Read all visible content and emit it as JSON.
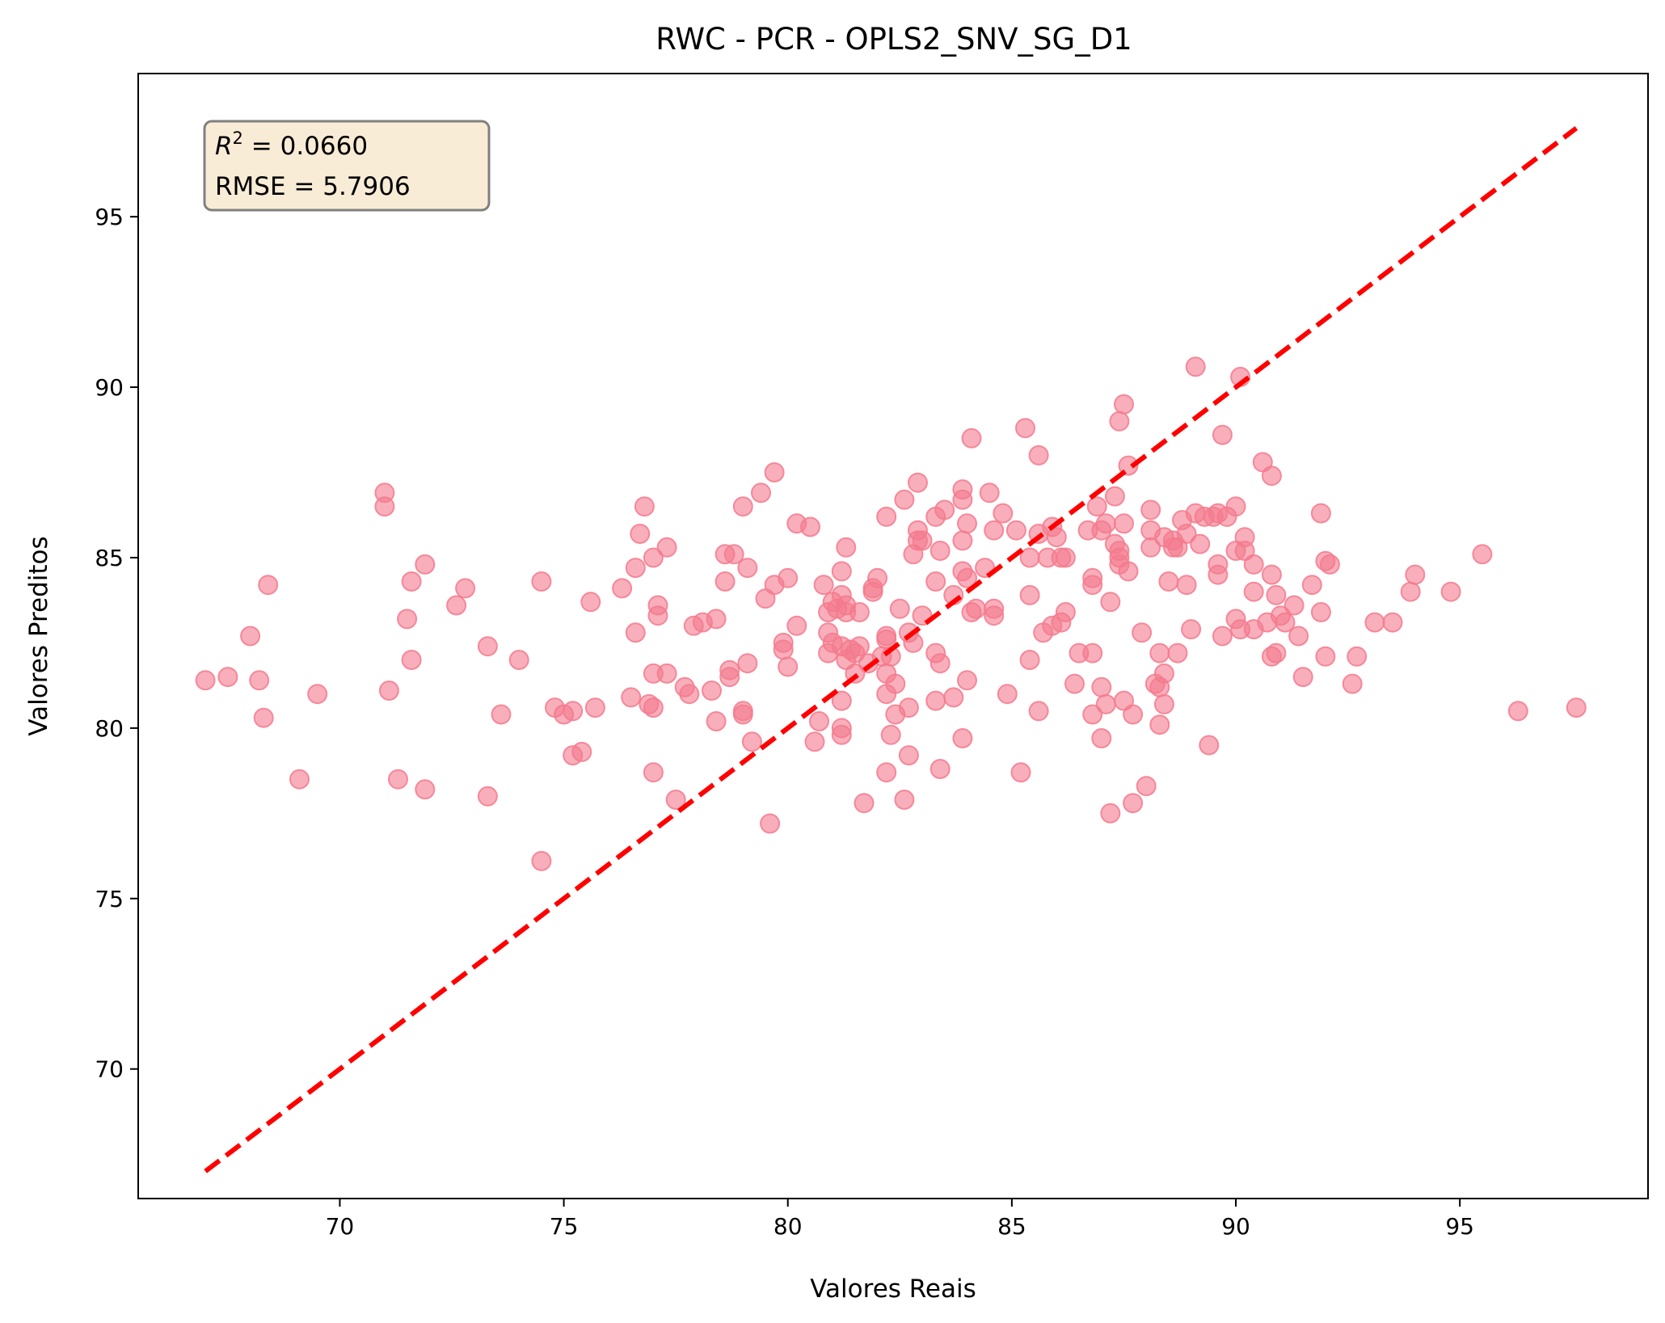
{
  "chart_data": {
    "type": "scatter",
    "title": "RWC - PCR - OPLS2_SNV_SG_D1",
    "xlabel": "Valores Reais",
    "ylabel": "Valores Preditos",
    "xlim": [
      65.5,
      99.2
    ],
    "ylim": [
      66.2,
      99.2
    ],
    "xticks": [
      70,
      75,
      80,
      85,
      90,
      95
    ],
    "yticks": [
      70,
      75,
      80,
      85,
      90,
      95
    ],
    "grid": false,
    "stats": {
      "r2_label": "R",
      "r2_sup": "2",
      "r2_value": " = 0.0660",
      "rmse_text": "RMSE = 5.7906"
    },
    "reference_line": {
      "style": "dashed",
      "from": [
        67.0,
        67.0
      ],
      "to": [
        97.6,
        97.6
      ]
    },
    "colors": {
      "points": "#f47a8d",
      "reference": "#ff0000",
      "stats_box_fill": "#f9ecd6",
      "stats_box_edge": "#808080"
    },
    "points": [
      [
        67.0,
        81.4
      ],
      [
        67.5,
        81.5
      ],
      [
        68.0,
        82.7
      ],
      [
        68.2,
        81.4
      ],
      [
        68.3,
        80.3
      ],
      [
        68.4,
        84.2
      ],
      [
        69.1,
        78.5
      ],
      [
        69.5,
        81.0
      ],
      [
        71.0,
        86.9
      ],
      [
        71.0,
        86.5
      ],
      [
        71.1,
        81.1
      ],
      [
        71.3,
        78.5
      ],
      [
        71.5,
        83.2
      ],
      [
        71.6,
        84.3
      ],
      [
        71.6,
        82.0
      ],
      [
        71.9,
        84.8
      ],
      [
        71.9,
        78.2
      ],
      [
        72.6,
        83.6
      ],
      [
        72.8,
        84.1
      ],
      [
        73.3,
        82.4
      ],
      [
        73.3,
        78.0
      ],
      [
        73.6,
        80.4
      ],
      [
        74.0,
        82.0
      ],
      [
        74.5,
        84.3
      ],
      [
        74.5,
        76.1
      ],
      [
        74.8,
        80.6
      ],
      [
        75.0,
        80.4
      ],
      [
        75.2,
        80.5
      ],
      [
        75.2,
        79.2
      ],
      [
        75.4,
        79.3
      ],
      [
        75.6,
        83.7
      ],
      [
        75.7,
        80.6
      ],
      [
        76.3,
        84.1
      ],
      [
        76.5,
        80.9
      ],
      [
        76.6,
        84.7
      ],
      [
        76.6,
        82.8
      ],
      [
        76.7,
        85.7
      ],
      [
        76.8,
        86.5
      ],
      [
        76.9,
        80.7
      ],
      [
        77.0,
        81.6
      ],
      [
        77.0,
        78.7
      ],
      [
        77.0,
        80.6
      ],
      [
        77.0,
        85.0
      ],
      [
        77.1,
        83.3
      ],
      [
        77.1,
        83.6
      ],
      [
        77.3,
        81.6
      ],
      [
        77.3,
        85.3
      ],
      [
        77.5,
        77.9
      ],
      [
        77.7,
        81.2
      ],
      [
        77.8,
        81.0
      ],
      [
        77.9,
        83.0
      ],
      [
        78.1,
        83.1
      ],
      [
        78.3,
        81.1
      ],
      [
        78.4,
        80.2
      ],
      [
        78.4,
        83.2
      ],
      [
        78.6,
        84.3
      ],
      [
        78.6,
        85.1
      ],
      [
        78.7,
        81.5
      ],
      [
        78.7,
        81.7
      ],
      [
        78.8,
        85.1
      ],
      [
        79.0,
        80.4
      ],
      [
        79.0,
        86.5
      ],
      [
        79.0,
        80.5
      ],
      [
        79.1,
        84.7
      ],
      [
        79.1,
        81.9
      ],
      [
        79.2,
        79.6
      ],
      [
        79.4,
        86.9
      ],
      [
        79.5,
        83.8
      ],
      [
        79.6,
        77.2
      ],
      [
        79.7,
        84.2
      ],
      [
        79.7,
        87.5
      ],
      [
        79.9,
        82.3
      ],
      [
        79.9,
        82.5
      ],
      [
        80.0,
        81.8
      ],
      [
        80.0,
        84.4
      ],
      [
        80.2,
        86.0
      ],
      [
        80.2,
        83.0
      ],
      [
        80.5,
        85.9
      ],
      [
        80.6,
        79.6
      ],
      [
        80.7,
        80.2
      ],
      [
        80.8,
        84.2
      ],
      [
        80.9,
        82.8
      ],
      [
        80.9,
        83.4
      ],
      [
        80.9,
        82.2
      ],
      [
        81.0,
        83.7
      ],
      [
        81.0,
        82.5
      ],
      [
        81.1,
        83.5
      ],
      [
        81.2,
        84.6
      ],
      [
        81.2,
        83.9
      ],
      [
        81.2,
        82.4
      ],
      [
        81.2,
        80.8
      ],
      [
        81.2,
        79.8
      ],
      [
        81.2,
        80.0
      ],
      [
        81.3,
        83.4
      ],
      [
        81.3,
        83.6
      ],
      [
        81.3,
        82.0
      ],
      [
        81.3,
        85.3
      ],
      [
        81.4,
        82.3
      ],
      [
        81.5,
        82.2
      ],
      [
        81.5,
        81.6
      ],
      [
        81.6,
        82.4
      ],
      [
        81.6,
        83.4
      ],
      [
        81.7,
        77.8
      ],
      [
        81.8,
        81.9
      ],
      [
        81.9,
        84.0
      ],
      [
        81.9,
        84.1
      ],
      [
        82.0,
        84.4
      ],
      [
        82.1,
        82.1
      ],
      [
        82.2,
        82.7
      ],
      [
        82.2,
        82.6
      ],
      [
        82.2,
        81.6
      ],
      [
        82.2,
        81.0
      ],
      [
        82.2,
        78.7
      ],
      [
        82.2,
        86.2
      ],
      [
        82.3,
        79.8
      ],
      [
        82.3,
        82.1
      ],
      [
        82.4,
        80.4
      ],
      [
        82.4,
        81.3
      ],
      [
        82.5,
        83.5
      ],
      [
        82.6,
        77.9
      ],
      [
        82.6,
        86.7
      ],
      [
        82.7,
        79.2
      ],
      [
        82.7,
        80.6
      ],
      [
        82.7,
        82.8
      ],
      [
        82.8,
        82.5
      ],
      [
        82.8,
        85.1
      ],
      [
        82.9,
        85.5
      ],
      [
        82.9,
        85.8
      ],
      [
        82.9,
        87.2
      ],
      [
        83.0,
        83.3
      ],
      [
        83.0,
        85.5
      ],
      [
        83.3,
        86.2
      ],
      [
        83.3,
        80.8
      ],
      [
        83.3,
        84.3
      ],
      [
        83.3,
        82.2
      ],
      [
        83.4,
        85.2
      ],
      [
        83.4,
        78.8
      ],
      [
        83.4,
        81.9
      ],
      [
        83.5,
        86.4
      ],
      [
        83.7,
        80.9
      ],
      [
        83.7,
        83.9
      ],
      [
        83.9,
        86.7
      ],
      [
        83.9,
        87.0
      ],
      [
        83.9,
        85.5
      ],
      [
        83.9,
        84.6
      ],
      [
        83.9,
        79.7
      ],
      [
        84.0,
        81.4
      ],
      [
        84.0,
        86.0
      ],
      [
        84.0,
        84.4
      ],
      [
        84.1,
        88.5
      ],
      [
        84.1,
        83.4
      ],
      [
        84.2,
        83.5
      ],
      [
        84.4,
        84.7
      ],
      [
        84.5,
        86.9
      ],
      [
        84.6,
        85.8
      ],
      [
        84.6,
        83.3
      ],
      [
        84.6,
        83.5
      ],
      [
        84.8,
        86.3
      ],
      [
        84.9,
        81.0
      ],
      [
        85.1,
        85.8
      ],
      [
        85.2,
        78.7
      ],
      [
        85.3,
        88.8
      ],
      [
        85.4,
        85.0
      ],
      [
        85.4,
        82.0
      ],
      [
        85.4,
        83.9
      ],
      [
        85.6,
        85.7
      ],
      [
        85.6,
        88.0
      ],
      [
        85.6,
        80.5
      ],
      [
        85.7,
        82.8
      ],
      [
        85.8,
        85.0
      ],
      [
        85.9,
        85.9
      ],
      [
        85.9,
        83.0
      ],
      [
        86.0,
        85.6
      ],
      [
        86.1,
        85.0
      ],
      [
        86.1,
        83.1
      ],
      [
        86.2,
        83.4
      ],
      [
        86.2,
        85.0
      ],
      [
        86.4,
        81.3
      ],
      [
        86.5,
        82.2
      ],
      [
        86.7,
        85.8
      ],
      [
        86.8,
        80.4
      ],
      [
        86.8,
        84.4
      ],
      [
        86.8,
        84.2
      ],
      [
        86.8,
        82.2
      ],
      [
        86.9,
        86.5
      ],
      [
        87.0,
        79.7
      ],
      [
        87.0,
        81.2
      ],
      [
        87.0,
        85.8
      ],
      [
        87.1,
        80.7
      ],
      [
        87.1,
        86.0
      ],
      [
        87.2,
        77.5
      ],
      [
        87.2,
        83.7
      ],
      [
        87.3,
        86.8
      ],
      [
        87.3,
        85.4
      ],
      [
        87.4,
        85.0
      ],
      [
        87.4,
        84.8
      ],
      [
        87.4,
        85.2
      ],
      [
        87.4,
        89.0
      ],
      [
        87.5,
        89.5
      ],
      [
        87.5,
        86.0
      ],
      [
        87.5,
        80.8
      ],
      [
        87.6,
        84.6
      ],
      [
        87.6,
        87.7
      ],
      [
        87.7,
        80.4
      ],
      [
        87.7,
        77.8
      ],
      [
        87.9,
        82.8
      ],
      [
        88.0,
        78.3
      ],
      [
        88.1,
        86.4
      ],
      [
        88.1,
        85.8
      ],
      [
        88.1,
        85.3
      ],
      [
        88.2,
        81.3
      ],
      [
        88.3,
        82.2
      ],
      [
        88.3,
        81.2
      ],
      [
        88.3,
        80.1
      ],
      [
        88.4,
        85.6
      ],
      [
        88.4,
        80.7
      ],
      [
        88.4,
        81.6
      ],
      [
        88.5,
        84.3
      ],
      [
        88.6,
        85.5
      ],
      [
        88.6,
        85.3
      ],
      [
        88.7,
        82.2
      ],
      [
        88.7,
        85.3
      ],
      [
        88.8,
        86.1
      ],
      [
        88.9,
        84.2
      ],
      [
        88.9,
        85.7
      ],
      [
        89.0,
        82.9
      ],
      [
        89.1,
        86.3
      ],
      [
        89.1,
        90.6
      ],
      [
        89.2,
        85.4
      ],
      [
        89.3,
        86.2
      ],
      [
        89.4,
        79.5
      ],
      [
        89.5,
        86.2
      ],
      [
        89.6,
        84.5
      ],
      [
        89.6,
        84.8
      ],
      [
        89.6,
        86.3
      ],
      [
        89.7,
        88.6
      ],
      [
        89.7,
        82.7
      ],
      [
        89.8,
        86.2
      ],
      [
        90.0,
        86.5
      ],
      [
        90.0,
        83.2
      ],
      [
        90.0,
        85.2
      ],
      [
        90.1,
        82.9
      ],
      [
        90.1,
        90.3
      ],
      [
        90.2,
        85.2
      ],
      [
        90.2,
        85.6
      ],
      [
        90.4,
        82.9
      ],
      [
        90.4,
        84.0
      ],
      [
        90.4,
        84.8
      ],
      [
        90.6,
        87.8
      ],
      [
        90.7,
        83.1
      ],
      [
        90.8,
        87.4
      ],
      [
        90.8,
        84.5
      ],
      [
        90.8,
        82.1
      ],
      [
        90.9,
        82.2
      ],
      [
        90.9,
        83.9
      ],
      [
        91.0,
        83.3
      ],
      [
        91.1,
        83.1
      ],
      [
        91.3,
        83.6
      ],
      [
        91.4,
        82.7
      ],
      [
        91.5,
        81.5
      ],
      [
        91.7,
        84.2
      ],
      [
        91.9,
        83.4
      ],
      [
        91.9,
        86.3
      ],
      [
        92.0,
        82.1
      ],
      [
        92.0,
        84.9
      ],
      [
        92.1,
        84.8
      ],
      [
        92.6,
        81.3
      ],
      [
        92.7,
        82.1
      ],
      [
        93.1,
        83.1
      ],
      [
        93.5,
        83.1
      ],
      [
        93.9,
        84.0
      ],
      [
        94.0,
        84.5
      ],
      [
        94.8,
        84.0
      ],
      [
        95.5,
        85.1
      ],
      [
        96.3,
        80.5
      ],
      [
        97.6,
        80.6
      ]
    ]
  }
}
